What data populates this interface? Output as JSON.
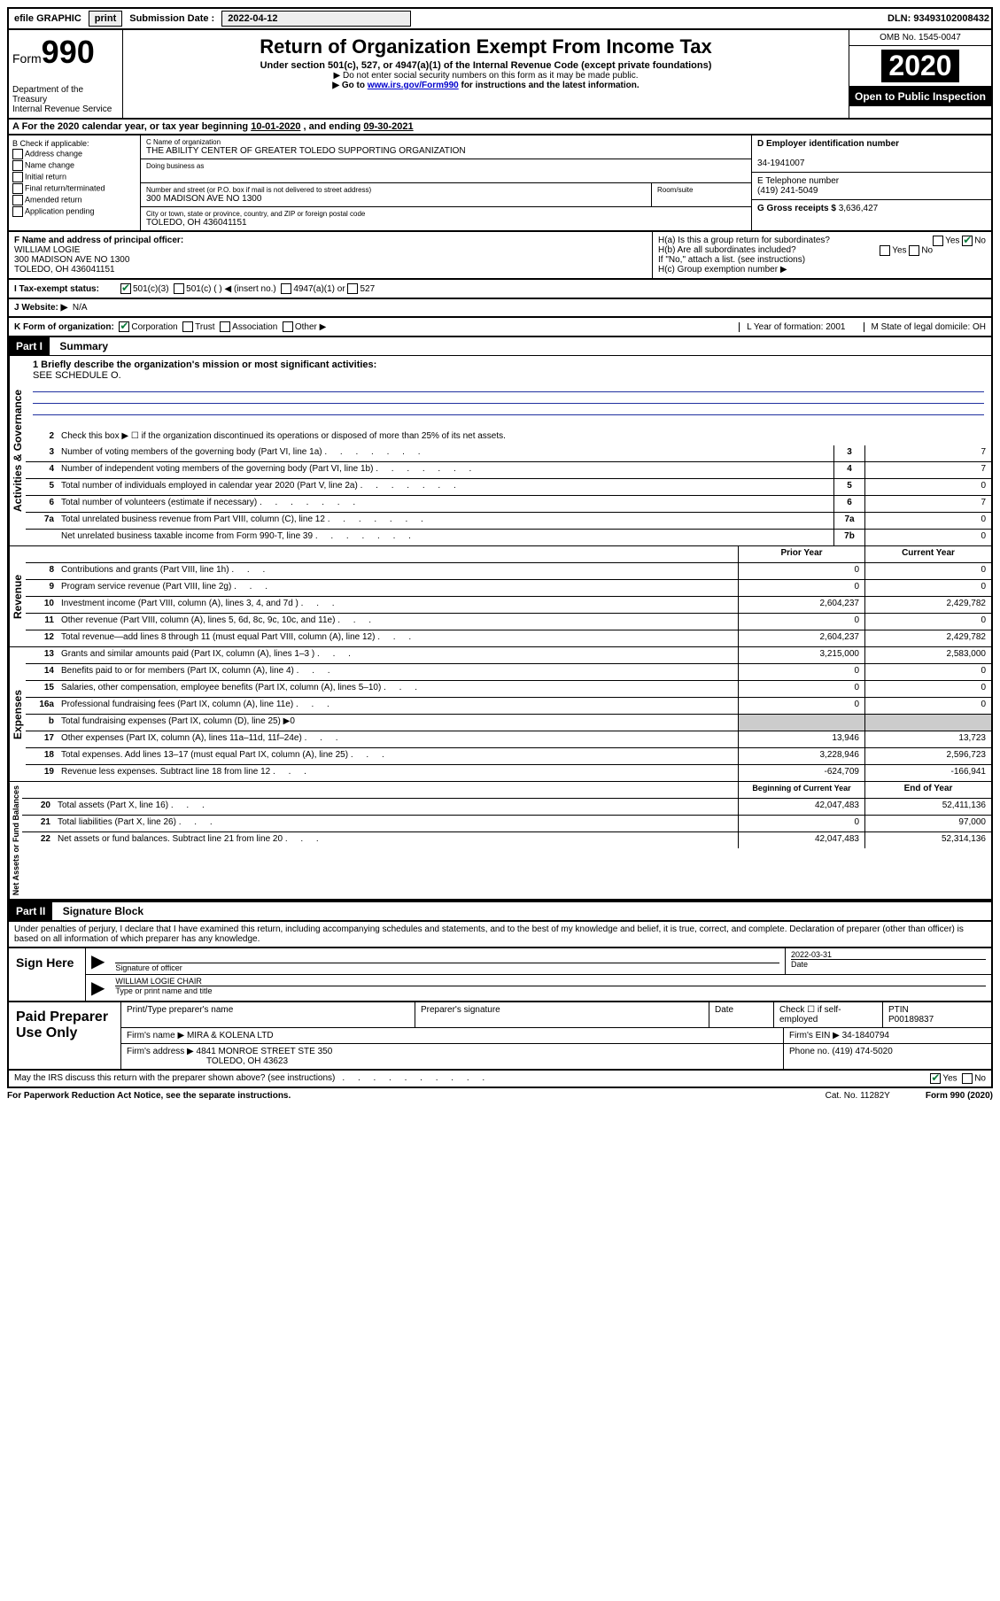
{
  "top_bar": {
    "efile": "efile GRAPHIC",
    "print": "print",
    "sub_label": "Submission Date :",
    "sub_date": "2022-04-12",
    "dln": "DLN: 93493102008432"
  },
  "header": {
    "form_label": "Form",
    "form_num": "990",
    "dept": "Department of the Treasury\nInternal Revenue Service",
    "title": "Return of Organization Exempt From Income Tax",
    "subtitle": "Under section 501(c), 527, or 4947(a)(1) of the Internal Revenue Code (except private foundations)",
    "note1": "▶ Do not enter social security numbers on this form as it may be made public.",
    "note2_pre": "▶ Go to ",
    "note2_link": "www.irs.gov/Form990",
    "note2_post": " for instructions and the latest information.",
    "omb": "OMB No. 1545-0047",
    "year": "2020",
    "inspection": "Open to Public Inspection"
  },
  "row_a": {
    "text_pre": "A For the 2020 calendar year, or tax year beginning ",
    "begin": "10-01-2020",
    "mid": "   , and ending ",
    "end": "09-30-2021"
  },
  "section_b": {
    "title": "B Check if applicable:",
    "opts": [
      "Address change",
      "Name change",
      "Initial return",
      "Final return/terminated",
      "Amended return",
      "Application pending"
    ]
  },
  "section_c": {
    "name_lbl": "C Name of organization",
    "name": "THE ABILITY CENTER OF GREATER TOLEDO SUPPORTING ORGANIZATION",
    "dba_lbl": "Doing business as",
    "street_lbl": "Number and street (or P.O. box if mail is not delivered to street address)",
    "room_lbl": "Room/suite",
    "street": "300 MADISON AVE NO 1300",
    "city_lbl": "City or town, state or province, country, and ZIP or foreign postal code",
    "city": "TOLEDO, OH  436041151"
  },
  "section_d": {
    "lbl": "D Employer identification number",
    "val": "34-1941007",
    "e_lbl": "E Telephone number",
    "e_val": "(419) 241-5049",
    "g_lbl": "G Gross receipts $",
    "g_val": "3,636,427"
  },
  "section_f": {
    "lbl": "F Name and address of principal officer:",
    "name": "WILLIAM LOGIE",
    "addr1": "300 MADISON AVE NO 1300",
    "addr2": "TOLEDO, OH  436041151"
  },
  "section_h": {
    "ha": "H(a)  Is this a group return for subordinates?",
    "hb": "H(b)  Are all subordinates included?",
    "hb_note": "If \"No,\" attach a list. (see instructions)",
    "hc": "H(c)  Group exemption number ▶"
  },
  "row_i": {
    "lbl": "I   Tax-exempt status:",
    "opts": [
      "501(c)(3)",
      "501(c) (  ) ◀ (insert no.)",
      "4947(a)(1) or",
      "527"
    ]
  },
  "row_j": {
    "lbl": "J   Website: ▶",
    "val": "N/A"
  },
  "row_k": {
    "lbl": "K Form of organization:",
    "opts": [
      "Corporation",
      "Trust",
      "Association",
      "Other ▶"
    ],
    "l": "L Year of formation: 2001",
    "m": "M State of legal domicile: OH"
  },
  "part1": {
    "header": "Part I",
    "title": "Summary",
    "side1": "Activities & Governance",
    "side2": "Revenue",
    "side3": "Expenses",
    "side4": "Net Assets or Fund Balances",
    "line1_lbl": "1  Briefly describe the organization's mission or most significant activities:",
    "line1_val": "SEE SCHEDULE O.",
    "line2": "Check this box ▶ ☐  if the organization discontinued its operations or disposed of more than 25% of its net assets.",
    "lines_gov": [
      {
        "n": "3",
        "d": "Number of voting members of the governing body (Part VI, line 1a)",
        "box": "3",
        "v": "7"
      },
      {
        "n": "4",
        "d": "Number of independent voting members of the governing body (Part VI, line 1b)",
        "box": "4",
        "v": "7"
      },
      {
        "n": "5",
        "d": "Total number of individuals employed in calendar year 2020 (Part V, line 2a)",
        "box": "5",
        "v": "0"
      },
      {
        "n": "6",
        "d": "Total number of volunteers (estimate if necessary)",
        "box": "6",
        "v": "7"
      },
      {
        "n": "7a",
        "d": "Total unrelated business revenue from Part VIII, column (C), line 12",
        "box": "7a",
        "v": "0"
      },
      {
        "n": "",
        "d": "Net unrelated business taxable income from Form 990-T, line 39",
        "box": "7b",
        "v": "0"
      }
    ],
    "py_hdr": "Prior Year",
    "cy_hdr": "Current Year",
    "lines_rev": [
      {
        "n": "8",
        "d": "Contributions and grants (Part VIII, line 1h)",
        "py": "0",
        "cy": "0"
      },
      {
        "n": "9",
        "d": "Program service revenue (Part VIII, line 2g)",
        "py": "0",
        "cy": "0"
      },
      {
        "n": "10",
        "d": "Investment income (Part VIII, column (A), lines 3, 4, and 7d )",
        "py": "2,604,237",
        "cy": "2,429,782"
      },
      {
        "n": "11",
        "d": "Other revenue (Part VIII, column (A), lines 5, 6d, 8c, 9c, 10c, and 11e)",
        "py": "0",
        "cy": "0"
      },
      {
        "n": "12",
        "d": "Total revenue—add lines 8 through 11 (must equal Part VIII, column (A), line 12)",
        "py": "2,604,237",
        "cy": "2,429,782"
      }
    ],
    "lines_exp": [
      {
        "n": "13",
        "d": "Grants and similar amounts paid (Part IX, column (A), lines 1–3 )",
        "py": "3,215,000",
        "cy": "2,583,000"
      },
      {
        "n": "14",
        "d": "Benefits paid to or for members (Part IX, column (A), line 4)",
        "py": "0",
        "cy": "0"
      },
      {
        "n": "15",
        "d": "Salaries, other compensation, employee benefits (Part IX, column (A), lines 5–10)",
        "py": "0",
        "cy": "0"
      },
      {
        "n": "16a",
        "d": "Professional fundraising fees (Part IX, column (A), line 11e)",
        "py": "0",
        "cy": "0"
      },
      {
        "n": "b",
        "d": "Total fundraising expenses (Part IX, column (D), line 25) ▶0",
        "py": "",
        "cy": ""
      },
      {
        "n": "17",
        "d": "Other expenses (Part IX, column (A), lines 11a–11d, 11f–24e)",
        "py": "13,946",
        "cy": "13,723"
      },
      {
        "n": "18",
        "d": "Total expenses. Add lines 13–17 (must equal Part IX, column (A), line 25)",
        "py": "3,228,946",
        "cy": "2,596,723"
      },
      {
        "n": "19",
        "d": "Revenue less expenses. Subtract line 18 from line 12",
        "py": "-624,709",
        "cy": "-166,941"
      }
    ],
    "by_hdr": "Beginning of Current Year",
    "ey_hdr": "End of Year",
    "lines_net": [
      {
        "n": "20",
        "d": "Total assets (Part X, line 16)",
        "py": "42,047,483",
        "cy": "52,411,136"
      },
      {
        "n": "21",
        "d": "Total liabilities (Part X, line 26)",
        "py": "0",
        "cy": "97,000"
      },
      {
        "n": "22",
        "d": "Net assets or fund balances. Subtract line 21 from line 20",
        "py": "42,047,483",
        "cy": "52,314,136"
      }
    ]
  },
  "part2": {
    "header": "Part II",
    "title": "Signature Block",
    "declaration": "Under penalties of perjury, I declare that I have examined this return, including accompanying schedules and statements, and to the best of my knowledge and belief, it is true, correct, and complete. Declaration of preparer (other than officer) is based on all information of which preparer has any knowledge."
  },
  "sign": {
    "label": "Sign Here",
    "sig_lbl": "Signature of officer",
    "date_lbl": "Date",
    "date": "2022-03-31",
    "name": "WILLIAM LOGIE  CHAIR",
    "name_lbl": "Type or print name and title"
  },
  "preparer": {
    "label": "Paid Preparer Use Only",
    "h1": "Print/Type preparer's name",
    "h2": "Preparer's signature",
    "h3": "Date",
    "h4": "Check ☐ if self-employed",
    "h5_lbl": "PTIN",
    "h5": "P00189837",
    "firm_lbl": "Firm's name     ▶",
    "firm": "MIRA & KOLENA LTD",
    "ein_lbl": "Firm's EIN ▶",
    "ein": "34-1840794",
    "addr_lbl": "Firm's address ▶",
    "addr1": "4841 MONROE STREET STE 350",
    "addr2": "TOLEDO, OH  43623",
    "phone_lbl": "Phone no.",
    "phone": "(419) 474-5020"
  },
  "footer": {
    "discuss": "May the IRS discuss this return with the preparer shown above? (see instructions)",
    "paperwork": "For Paperwork Reduction Act Notice, see the separate instructions.",
    "cat": "Cat. No. 11282Y",
    "form": "Form 990 (2020)"
  }
}
